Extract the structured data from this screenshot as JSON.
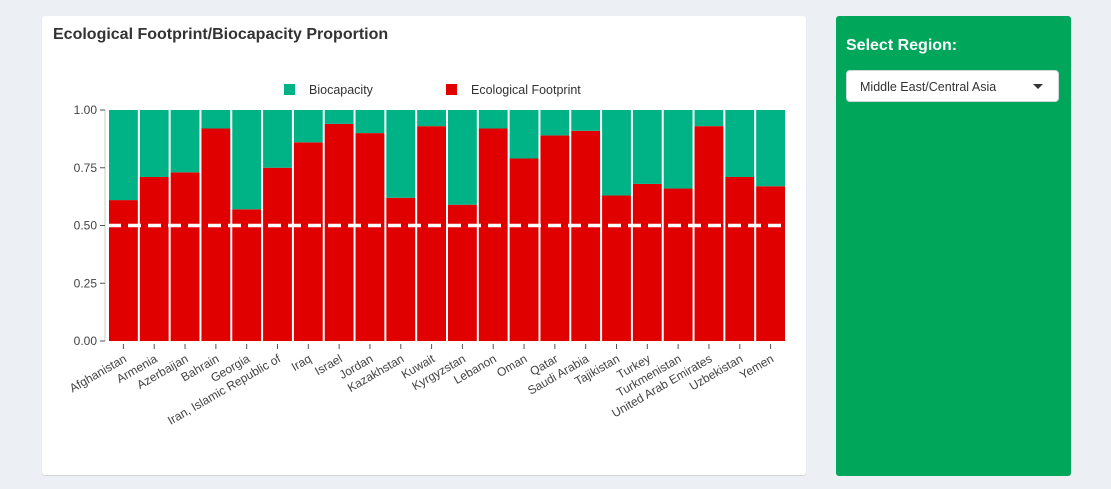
{
  "chart_box": {
    "title": "Ecological Footprint/Biocapacity Proportion"
  },
  "sidebar": {
    "label": "Select Region:",
    "region_select": {
      "value": "Middle East/Central Asia"
    }
  },
  "colors": {
    "biocapacity": "#00b386",
    "footprint": "#e00000",
    "sidebar": "#00a65a"
  },
  "chart_data": {
    "type": "bar",
    "stacked": true,
    "title": "Ecological Footprint/Biocapacity Proportion",
    "categories": [
      "Afghanistan",
      "Armenia",
      "Azerbaijan",
      "Bahrain",
      "Georgia",
      "Iran, Islamic Republic of",
      "Iraq",
      "Israel",
      "Jordan",
      "Kazakhstan",
      "Kuwait",
      "Kyrgyzstan",
      "Lebanon",
      "Oman",
      "Qatar",
      "Saudi Arabia",
      "Tajikistan",
      "Turkey",
      "Turkmenistan",
      "United Arab Emirates",
      "Uzbekistan",
      "Yemen"
    ],
    "series": [
      {
        "name": "Ecological Footprint",
        "color": "#e00000",
        "values": [
          0.61,
          0.71,
          0.73,
          0.92,
          0.57,
          0.75,
          0.86,
          0.94,
          0.9,
          0.62,
          0.93,
          0.59,
          0.92,
          0.79,
          0.89,
          0.91,
          0.63,
          0.68,
          0.66,
          0.93,
          0.71,
          0.67
        ]
      },
      {
        "name": "Biocapacity",
        "color": "#00b386",
        "values": [
          0.39,
          0.29,
          0.27,
          0.08,
          0.43,
          0.25,
          0.14,
          0.06,
          0.1,
          0.38,
          0.07,
          0.41,
          0.08,
          0.21,
          0.11,
          0.09,
          0.37,
          0.32,
          0.34,
          0.07,
          0.29,
          0.33
        ]
      }
    ],
    "ylim": [
      0,
      1
    ],
    "yticks": [
      "0.00",
      "0.25",
      "0.50",
      "0.75",
      "1.00"
    ],
    "reference_line": 0.5,
    "legend": [
      {
        "label": "Biocapacity",
        "color": "#00b386"
      },
      {
        "label": "Ecological Footprint",
        "color": "#e00000"
      }
    ],
    "legend_position": "top"
  }
}
